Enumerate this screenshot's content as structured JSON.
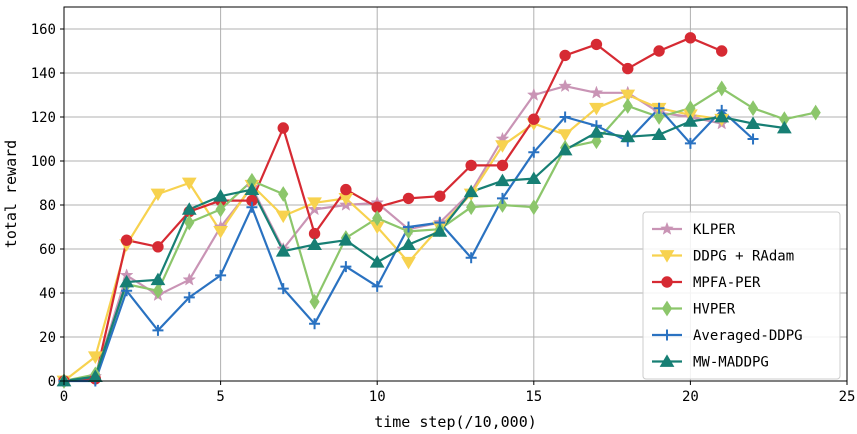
{
  "chart_data": {
    "type": "line",
    "xlabel": "time step(/10,000)",
    "ylabel": "total reward",
    "xlim": [
      0,
      25
    ],
    "ylim": [
      0,
      170
    ],
    "xticks": [
      0,
      5,
      10,
      15,
      20,
      25
    ],
    "yticks": [
      0,
      20,
      40,
      60,
      80,
      100,
      120,
      140,
      160
    ],
    "grid": true,
    "legend_position": "lower-right",
    "series": [
      {
        "name": "KLPER",
        "color": "#c994b5",
        "marker": "star",
        "x": [
          0,
          1,
          2,
          3,
          4,
          5,
          6,
          7,
          8,
          9,
          10,
          11,
          12,
          13,
          14,
          15,
          16,
          17,
          18,
          19,
          20,
          21
        ],
        "y": [
          0,
          2,
          48,
          39,
          46,
          70,
          88,
          60,
          78,
          80,
          81,
          69,
          72,
          86,
          110,
          130,
          134,
          131,
          131,
          122,
          120,
          117
        ]
      },
      {
        "name": "DDPG + RAdam",
        "color": "#f7d24f",
        "marker": "triangle-down",
        "x": [
          0,
          1,
          2,
          3,
          4,
          5,
          6,
          7,
          8,
          9,
          10,
          11,
          12,
          13,
          14,
          15,
          16,
          17,
          18,
          19,
          20,
          21
        ],
        "y": [
          0,
          11,
          62,
          85,
          90,
          68,
          89,
          75,
          81,
          83,
          70,
          54,
          70,
          85,
          107,
          117,
          112,
          124,
          130,
          124,
          121,
          119
        ]
      },
      {
        "name": "MPFA-PER",
        "color": "#d62a33",
        "marker": "circle",
        "x": [
          0,
          1,
          2,
          3,
          4,
          5,
          6,
          7,
          8,
          9,
          10,
          11,
          12,
          13,
          14,
          15,
          16,
          17,
          18,
          19,
          20,
          21
        ],
        "y": [
          0,
          1,
          64,
          61,
          77,
          82,
          82,
          115,
          67,
          87,
          79,
          83,
          84,
          98,
          98,
          119,
          148,
          153,
          142,
          150,
          156,
          150
        ]
      },
      {
        "name": "HVPER",
        "color": "#8cc66b",
        "marker": "diamond",
        "x": [
          0,
          1,
          2,
          3,
          4,
          5,
          6,
          7,
          8,
          9,
          10,
          11,
          12,
          13,
          14,
          15,
          16,
          17,
          18,
          19,
          20,
          21,
          22,
          23,
          24
        ],
        "y": [
          0,
          3,
          44,
          41,
          72,
          78,
          91,
          85,
          36,
          65,
          74,
          68,
          69,
          79,
          80,
          79,
          106,
          109,
          125,
          120,
          124,
          133,
          124,
          119,
          122
        ]
      },
      {
        "name": "Averaged-DDPG",
        "color": "#2a72c1",
        "marker": "plus",
        "x": [
          0,
          1,
          2,
          3,
          4,
          5,
          6,
          7,
          8,
          9,
          10,
          11,
          12,
          13,
          14,
          15,
          16,
          17,
          18,
          19,
          20,
          21,
          22
        ],
        "y": [
          0,
          0,
          41,
          23,
          38,
          48,
          79,
          42,
          26,
          52,
          43,
          70,
          72,
          56,
          83,
          104,
          120,
          116,
          109,
          124,
          108,
          123,
          110
        ]
      },
      {
        "name": "MW-MADDPG",
        "color": "#177f74",
        "marker": "triangle-up",
        "x": [
          0,
          1,
          2,
          3,
          4,
          5,
          6,
          7,
          8,
          9,
          10,
          11,
          12,
          13,
          14,
          15,
          16,
          17,
          18,
          19,
          20,
          21,
          22,
          23
        ],
        "y": [
          0,
          2,
          45,
          46,
          78,
          84,
          87,
          59,
          62,
          64,
          54,
          62,
          68,
          86,
          91,
          92,
          105,
          113,
          111,
          112,
          118,
          120,
          117,
          115
        ]
      }
    ]
  }
}
